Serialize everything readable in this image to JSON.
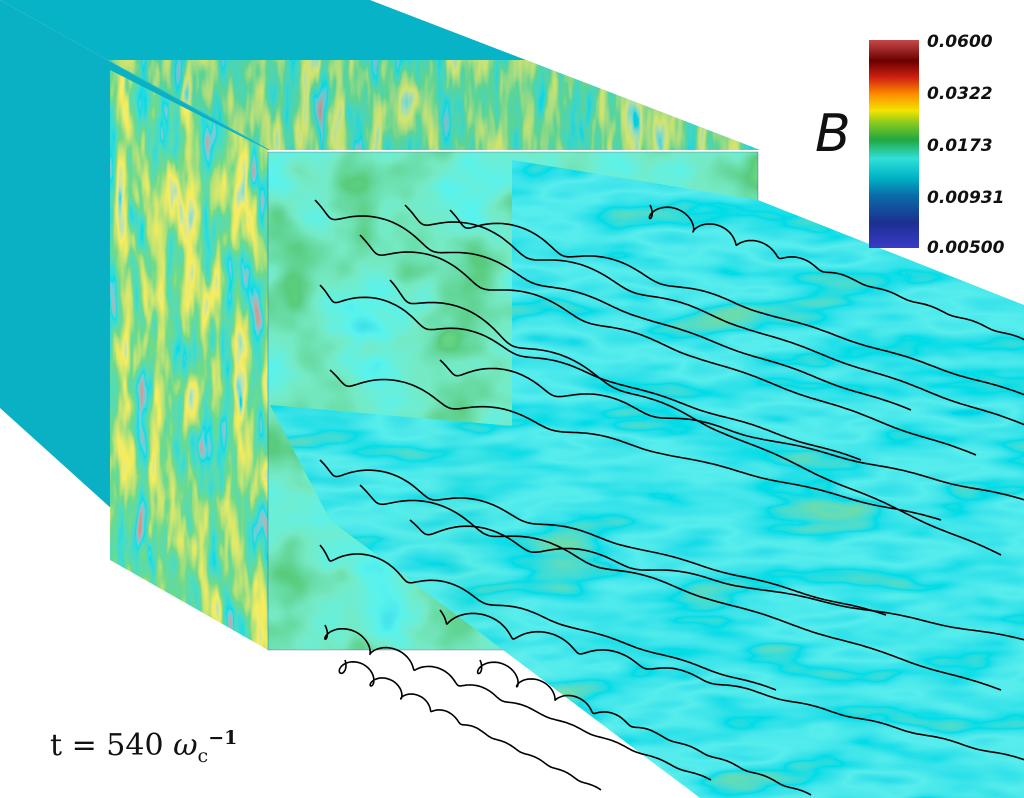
{
  "colorbar": {
    "title": "B",
    "ticks": [
      "0.0600",
      "0.0322",
      "0.0173",
      "0.00931",
      "0.00500"
    ],
    "scale": "log",
    "range": [
      0.005,
      0.06
    ],
    "colors": [
      "#3838c8",
      "#1a3a8a",
      "#00b8c8",
      "#30d8d8",
      "#28b028",
      "#f0e000",
      "#ff7800",
      "#c81010",
      "#6a0000",
      "#c84040"
    ]
  },
  "time_label": {
    "prefix": "t = 540",
    "symbol": "ω",
    "subscript": "c",
    "superscript": "−1"
  }
}
